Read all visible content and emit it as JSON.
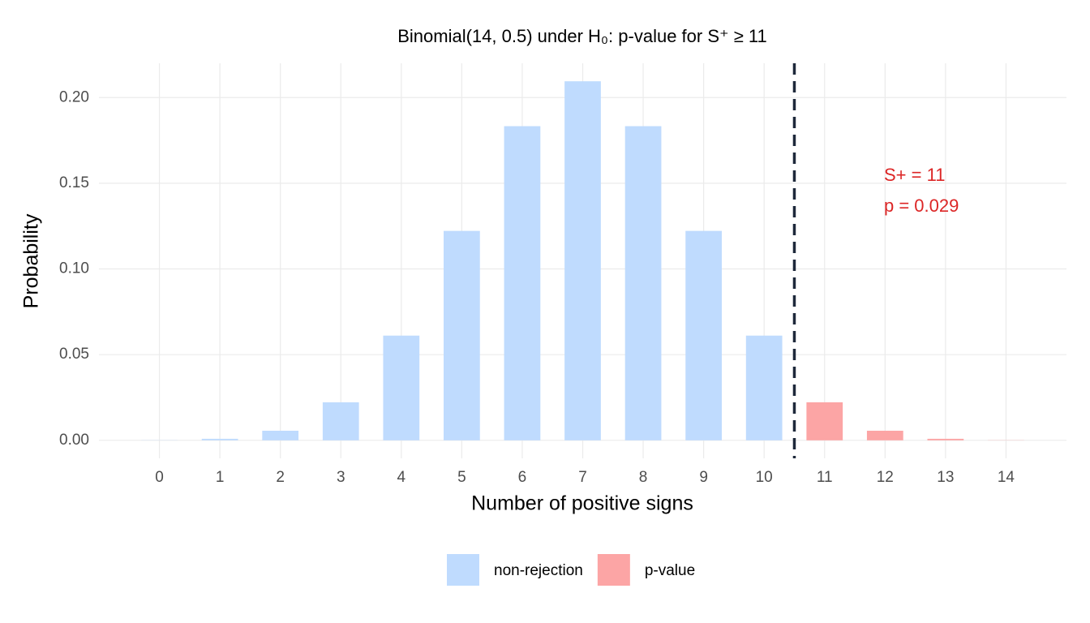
{
  "chart_data": {
    "type": "bar",
    "title": "Binomial(14, 0.5) under H₀: p-value for S⁺ ≥ 11",
    "x_label": "Number of positive signs",
    "y_label": "Probability",
    "x": [
      0,
      1,
      2,
      3,
      4,
      5,
      6,
      7,
      8,
      9,
      10,
      11,
      12,
      13,
      14
    ],
    "series": [
      {
        "name": "non-rejection",
        "color": "#bfdbfe",
        "values": [
          0.0001,
          0.0009,
          0.0056,
          0.0222,
          0.0611,
          0.1222,
          0.1833,
          0.2095,
          0.1833,
          0.1222,
          0.0611,
          null,
          null,
          null,
          null
        ]
      },
      {
        "name": "p-value",
        "color": "#fca5a5",
        "values": [
          null,
          null,
          null,
          null,
          null,
          null,
          null,
          null,
          null,
          null,
          null,
          0.0222,
          0.0056,
          0.0009,
          0.0001
        ]
      }
    ],
    "xlim": [
      -1,
      15
    ],
    "xticks": [
      0,
      1,
      2,
      3,
      4,
      5,
      6,
      7,
      8,
      9,
      10,
      11,
      12,
      13,
      14
    ],
    "ylim": [
      -0.0105,
      0.22
    ],
    "yticks": [
      {
        "value": 0,
        "label": "0.00"
      },
      {
        "value": 0.05,
        "label": "0.05"
      },
      {
        "value": 0.1,
        "label": "0.10"
      },
      {
        "value": 0.15,
        "label": "0.15"
      },
      {
        "value": 0.2,
        "label": "0.20"
      }
    ],
    "vline": {
      "x": 10.5,
      "color": "#1e293b"
    },
    "annotation": {
      "lines": [
        "S+ = 11",
        "p = 0.029"
      ],
      "color": "#dc2626"
    },
    "grid": true,
    "legend": "bottom"
  }
}
